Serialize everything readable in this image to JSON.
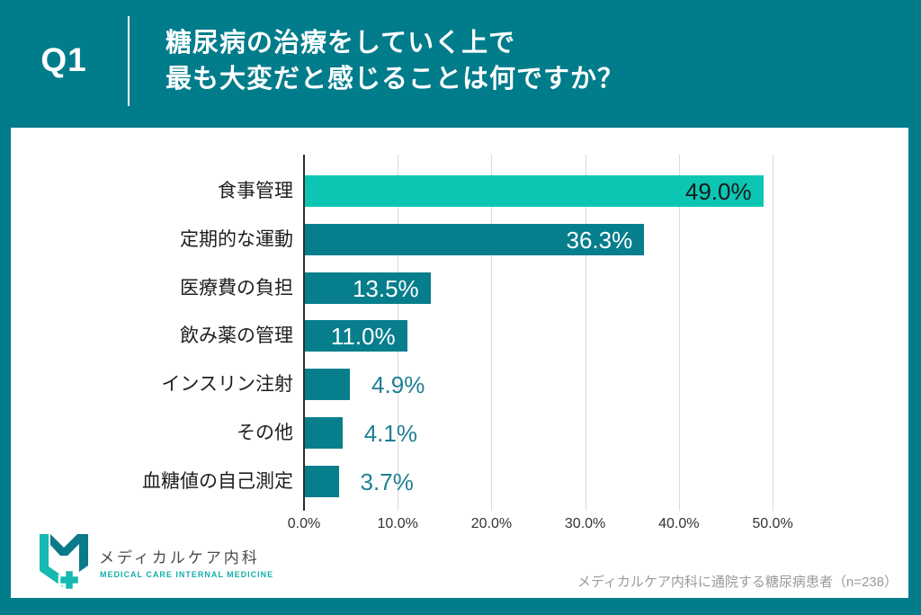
{
  "header": {
    "question_number": "Q1",
    "title_lines": [
      "糖尿病の治療をしていく上で",
      "最も大変だと感じることは何ですか？"
    ]
  },
  "chart_data": {
    "type": "bar",
    "orientation": "horizontal",
    "xlim": [
      0,
      50
    ],
    "x_tick_values": [
      0,
      10,
      20,
      30,
      40,
      50
    ],
    "x_tick_labels": [
      "0.0%",
      "10.0%",
      "20.0%",
      "30.0%",
      "40.0%",
      "50.0%"
    ],
    "grid": "vertical-gridlines",
    "legend": "none",
    "bars": [
      {
        "category": "食事管理",
        "value": 49.0,
        "label": "49.0%",
        "color": "#0CC6B3",
        "label_position": "inside",
        "label_color": "#1A1A1A"
      },
      {
        "category": "定期的な運動",
        "value": 36.3,
        "label": "36.3%",
        "color": "#077E8C",
        "label_position": "inside",
        "label_color": "#FFFFFF"
      },
      {
        "category": "医療費の負担",
        "value": 13.5,
        "label": "13.5%",
        "color": "#077E8C",
        "label_position": "inside",
        "label_color": "#FFFFFF"
      },
      {
        "category": "飲み薬の管理",
        "value": 11.0,
        "label": "11.0%",
        "color": "#077E8C",
        "label_position": "inside",
        "label_color": "#FFFFFF"
      },
      {
        "category": "インスリン注射",
        "value": 4.9,
        "label": "4.9%",
        "color": "#077E8C",
        "label_position": "outside",
        "label_color": "#1E7F94"
      },
      {
        "category": "その他",
        "value": 4.1,
        "label": "4.1%",
        "color": "#077E8C",
        "label_position": "outside",
        "label_color": "#1E7F94"
      },
      {
        "category": "血糖値の自己測定",
        "value": 3.7,
        "label": "3.7%",
        "color": "#077E8C",
        "label_position": "outside",
        "label_color": "#1E7F94"
      }
    ]
  },
  "footer": {
    "clinic_name": "メディカルケア内科",
    "clinic_name_en": "MEDICAL CARE INTERNAL MEDICINE",
    "source_note": "メディカルケア内科に通院する糖尿病患者（n=238）"
  },
  "colors": {
    "background_teal": "#007C8B",
    "bar_teal": "#077E8C",
    "bar_turquoise": "#0CC6B3",
    "accent_turquoise": "#14AFA8",
    "value_label_teal": "#1E7F94"
  }
}
